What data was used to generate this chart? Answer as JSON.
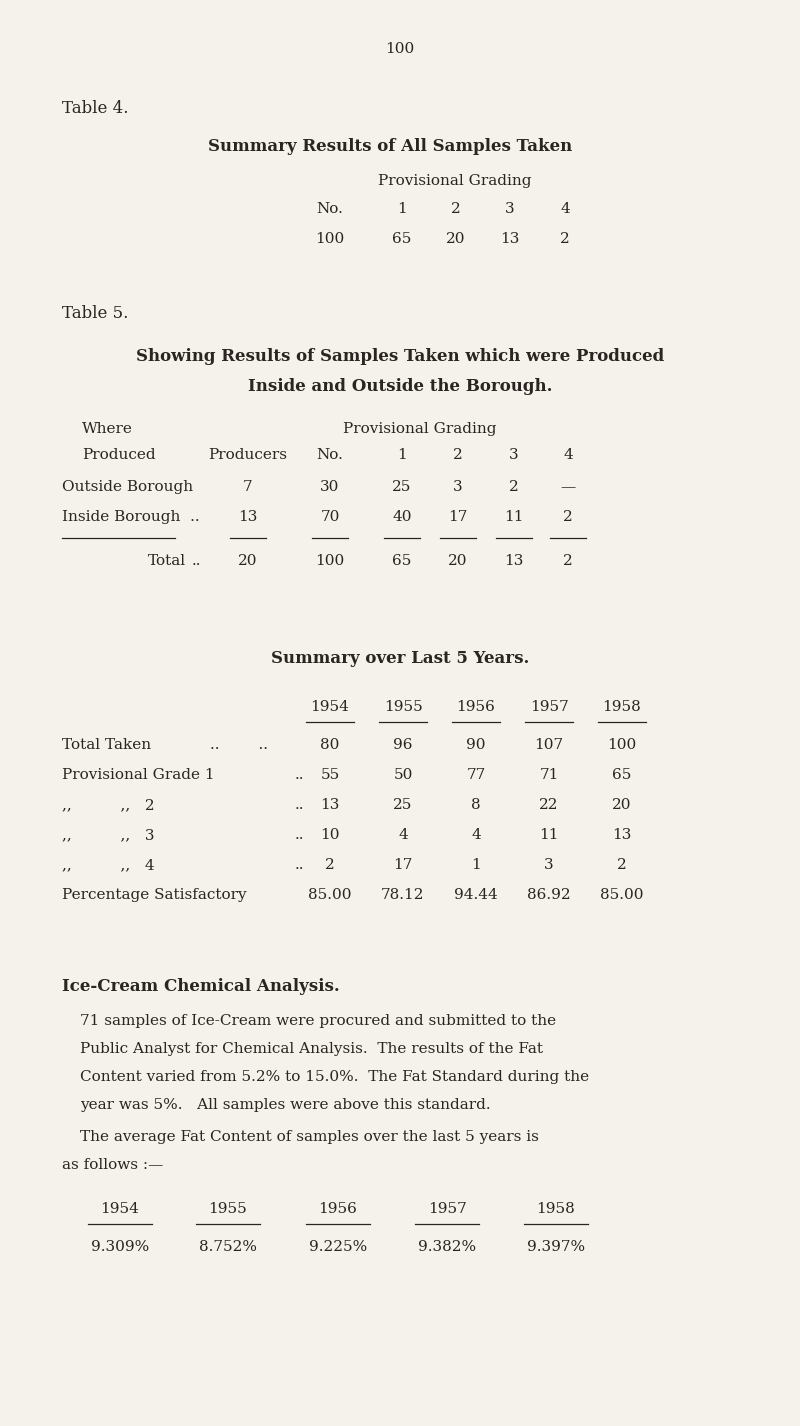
{
  "bg_color": "#f5f2eb",
  "text_color": "#2a2520",
  "page_number": "100",
  "table4_label": "Table 4.",
  "table4_title": "Summary Results of All Samples Taken",
  "table4_prov_grading": "Provisional Grading",
  "table4_headers": [
    "No.",
    "1",
    "2",
    "3",
    "4"
  ],
  "table4_values": [
    "100",
    "65",
    "20",
    "13",
    "2"
  ],
  "table5_label": "Table 5.",
  "table5_title1": "Showing Results of Samples Taken which were Produced",
  "table5_title2": "Inside and Outside the Borough.",
  "summary_title": "Summary over Last 5 Years.",
  "summary_years": [
    "1954",
    "1955",
    "1956",
    "1957",
    "1958"
  ],
  "icecream_heading": "Ice-Cream Chemical Analysis.",
  "icecream_para1a": "71 samples of Ice-Cream were procured and submitted to the",
  "icecream_para1b": "Public Analyst for Chemical Analysis.  The results of the Fat",
  "icecream_para1c": "Content varied from 5.2% to 15.0%.  The Fat Standard during the",
  "icecream_para1d": "year was 5%.   All samples were above this standard.",
  "icecream_para2a": "The average Fat Content of samples over the last 5 years is",
  "icecream_para2b": "as follows :—",
  "fat_years": [
    "1954",
    "1955",
    "1956",
    "1957",
    "1958"
  ],
  "fat_values": [
    "9.309%",
    "8.752%",
    "9.225%",
    "9.382%",
    "9.397%"
  ]
}
